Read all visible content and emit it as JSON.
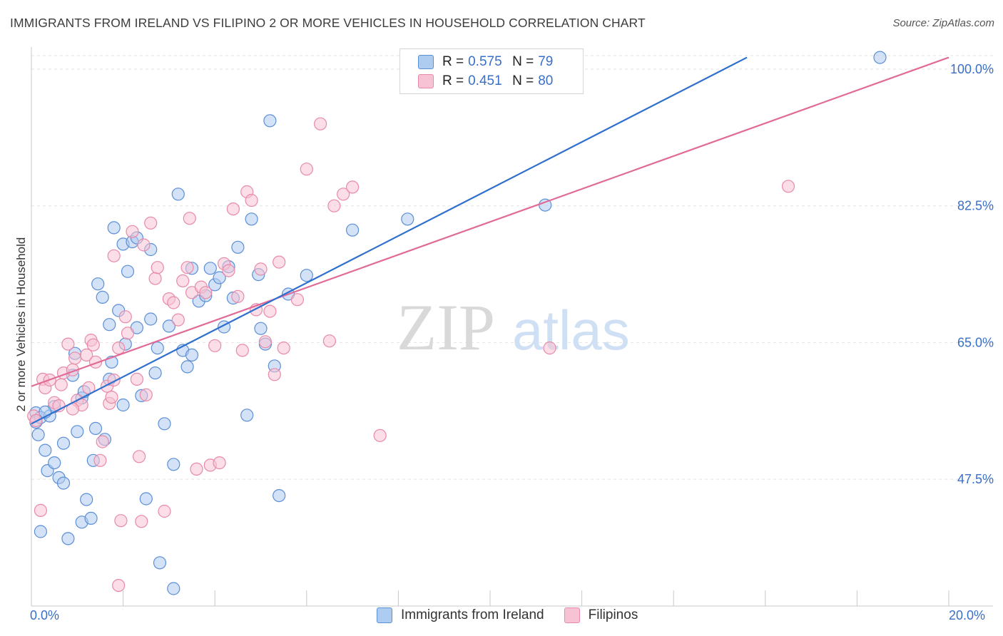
{
  "header": {
    "title": "IMMIGRANTS FROM IRELAND VS FILIPINO 2 OR MORE VEHICLES IN HOUSEHOLD CORRELATION CHART",
    "source": "Source: ZipAtlas.com"
  },
  "watermark": {
    "zip": "ZIP",
    "atlas": "atlas"
  },
  "legend": {
    "rows": [
      {
        "r_label": "R =",
        "r_value": "0.575",
        "n_label": "N =",
        "n_value": "79"
      },
      {
        "r_label": "R =",
        "r_value": "0.451",
        "n_label": "N =",
        "n_value": "80"
      }
    ]
  },
  "colors": {
    "blue_fill": "#aecbf0",
    "blue_stroke": "#5b8fd6",
    "blue_line": "#2f6fce",
    "pink_fill": "#f7c2d3",
    "pink_stroke": "#e88aa8",
    "pink_line": "#e06b97",
    "grid": "#e3e3e3",
    "tick_label": "#3a6fc7"
  },
  "chart_data": {
    "type": "scatter",
    "title": "IMMIGRANTS FROM IRELAND VS FILIPINO 2 OR MORE VEHICLES IN HOUSEHOLD CORRELATION CHART",
    "xlabel": "",
    "ylabel": "2 or more Vehicles in Household",
    "xlim": [
      0,
      20
    ],
    "ylim": [
      34,
      102
    ],
    "x_tick_labels": [
      "0.0%",
      "20.0%"
    ],
    "y_ticks": [
      47.5,
      65.0,
      82.5,
      100.0
    ],
    "y_tick_labels": [
      "47.5%",
      "65.0%",
      "82.5%",
      "100.0%"
    ],
    "grid": true,
    "legend_position": "top-center",
    "series": [
      {
        "name": "Immigrants from Ireland",
        "R": 0.575,
        "N": 79,
        "trend": {
          "x1": 0.0,
          "y1": 54.6,
          "x2": 15.6,
          "y2": 101.5
        },
        "points": [
          [
            0.1,
            56.0
          ],
          [
            0.1,
            54.8
          ],
          [
            0.15,
            53.2
          ],
          [
            0.2,
            55.4
          ],
          [
            0.2,
            40.8
          ],
          [
            0.3,
            51.2
          ],
          [
            0.35,
            48.6
          ],
          [
            0.4,
            55.6
          ],
          [
            0.5,
            56.8
          ],
          [
            0.5,
            49.6
          ],
          [
            0.6,
            47.7
          ],
          [
            0.7,
            52.1
          ],
          [
            0.7,
            47.0
          ],
          [
            0.8,
            39.9
          ],
          [
            0.9,
            60.8
          ],
          [
            0.95,
            63.6
          ],
          [
            1.0,
            53.6
          ],
          [
            1.1,
            57.9
          ],
          [
            1.15,
            58.7
          ],
          [
            1.1,
            42.0
          ],
          [
            1.2,
            44.9
          ],
          [
            1.3,
            42.5
          ],
          [
            1.35,
            49.9
          ],
          [
            1.4,
            54.0
          ],
          [
            1.45,
            72.5
          ],
          [
            1.55,
            70.8
          ],
          [
            1.6,
            52.6
          ],
          [
            1.7,
            60.3
          ],
          [
            1.7,
            67.3
          ],
          [
            1.75,
            62.5
          ],
          [
            1.8,
            79.7
          ],
          [
            1.9,
            69.1
          ],
          [
            2.0,
            77.6
          ],
          [
            2.0,
            57.0
          ],
          [
            2.05,
            64.8
          ],
          [
            2.1,
            74.1
          ],
          [
            2.2,
            77.9
          ],
          [
            2.3,
            78.4
          ],
          [
            2.3,
            66.9
          ],
          [
            2.4,
            58.2
          ],
          [
            2.5,
            45.0
          ],
          [
            2.6,
            76.9
          ],
          [
            2.6,
            68.0
          ],
          [
            2.75,
            64.3
          ],
          [
            2.8,
            36.8
          ],
          [
            2.9,
            54.6
          ],
          [
            3.0,
            67.1
          ],
          [
            3.1,
            49.4
          ],
          [
            3.1,
            33.5
          ],
          [
            3.2,
            84.0
          ],
          [
            3.3,
            64.0
          ],
          [
            3.4,
            61.9
          ],
          [
            3.5,
            63.4
          ],
          [
            3.5,
            74.5
          ],
          [
            3.65,
            70.3
          ],
          [
            3.8,
            71.0
          ],
          [
            3.9,
            74.5
          ],
          [
            4.0,
            72.4
          ],
          [
            4.1,
            73.3
          ],
          [
            4.2,
            67.0
          ],
          [
            4.3,
            74.7
          ],
          [
            4.4,
            70.7
          ],
          [
            4.5,
            77.2
          ],
          [
            4.7,
            55.7
          ],
          [
            4.8,
            80.8
          ],
          [
            4.95,
            73.7
          ],
          [
            5.0,
            66.8
          ],
          [
            5.1,
            64.8
          ],
          [
            5.2,
            93.4
          ],
          [
            5.3,
            62.0
          ],
          [
            5.4,
            45.4
          ],
          [
            5.6,
            71.2
          ],
          [
            6.0,
            73.6
          ],
          [
            7.0,
            79.4
          ],
          [
            8.2,
            80.8
          ],
          [
            11.2,
            82.6
          ],
          [
            18.5,
            101.5
          ],
          [
            0.3,
            56.1
          ],
          [
            2.7,
            61.1
          ]
        ]
      },
      {
        "name": "Filipinos",
        "R": 0.451,
        "N": 80,
        "trend": {
          "x1": 0.0,
          "y1": 59.4,
          "x2": 20.0,
          "y2": 101.5
        },
        "points": [
          [
            0.05,
            55.6
          ],
          [
            0.1,
            55.0
          ],
          [
            0.2,
            43.5
          ],
          [
            0.25,
            60.3
          ],
          [
            0.3,
            59.2
          ],
          [
            0.4,
            60.2
          ],
          [
            0.5,
            57.3
          ],
          [
            0.6,
            56.9
          ],
          [
            0.65,
            59.6
          ],
          [
            0.7,
            61.1
          ],
          [
            0.8,
            64.8
          ],
          [
            0.9,
            61.5
          ],
          [
            0.95,
            63.0
          ],
          [
            1.0,
            57.6
          ],
          [
            1.1,
            57.0
          ],
          [
            1.2,
            63.4
          ],
          [
            1.25,
            59.2
          ],
          [
            1.3,
            65.3
          ],
          [
            1.35,
            64.7
          ],
          [
            1.4,
            62.5
          ],
          [
            1.5,
            49.9
          ],
          [
            1.55,
            52.3
          ],
          [
            1.65,
            59.4
          ],
          [
            1.7,
            57.2
          ],
          [
            1.75,
            58.0
          ],
          [
            1.8,
            76.1
          ],
          [
            1.8,
            60.2
          ],
          [
            1.9,
            64.3
          ],
          [
            1.95,
            42.2
          ],
          [
            2.05,
            68.3
          ],
          [
            2.1,
            66.2
          ],
          [
            2.2,
            79.2
          ],
          [
            2.3,
            60.3
          ],
          [
            2.35,
            50.4
          ],
          [
            2.4,
            42.1
          ],
          [
            2.45,
            77.5
          ],
          [
            2.5,
            58.3
          ],
          [
            2.6,
            80.3
          ],
          [
            2.7,
            73.2
          ],
          [
            2.75,
            74.6
          ],
          [
            2.9,
            43.4
          ],
          [
            3.0,
            70.6
          ],
          [
            3.1,
            70.1
          ],
          [
            3.2,
            67.9
          ],
          [
            3.3,
            72.9
          ],
          [
            3.4,
            74.6
          ],
          [
            3.45,
            80.9
          ],
          [
            3.5,
            71.4
          ],
          [
            3.6,
            48.8
          ],
          [
            3.7,
            72.1
          ],
          [
            3.8,
            71.4
          ],
          [
            3.9,
            49.3
          ],
          [
            4.0,
            64.6
          ],
          [
            4.1,
            49.6
          ],
          [
            4.2,
            75.1
          ],
          [
            4.3,
            74.2
          ],
          [
            4.4,
            82.1
          ],
          [
            4.5,
            70.9
          ],
          [
            4.6,
            64.0
          ],
          [
            4.7,
            84.3
          ],
          [
            4.8,
            83.2
          ],
          [
            4.9,
            69.2
          ],
          [
            5.0,
            74.4
          ],
          [
            5.1,
            65.1
          ],
          [
            5.2,
            69.0
          ],
          [
            5.3,
            60.9
          ],
          [
            5.4,
            75.3
          ],
          [
            5.5,
            64.3
          ],
          [
            5.8,
            70.5
          ],
          [
            6.0,
            87.2
          ],
          [
            6.3,
            93.0
          ],
          [
            6.5,
            65.2
          ],
          [
            6.6,
            82.5
          ],
          [
            6.8,
            84.0
          ],
          [
            7.0,
            84.9
          ],
          [
            7.6,
            53.1
          ],
          [
            11.3,
            64.3
          ],
          [
            16.5,
            85.0
          ],
          [
            1.9,
            33.9
          ],
          [
            0.9,
            56.5
          ]
        ]
      }
    ]
  }
}
